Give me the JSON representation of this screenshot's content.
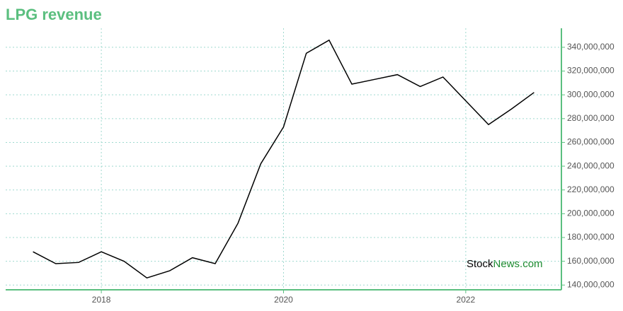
{
  "chart_data": {
    "type": "line",
    "title": "LPG revenue",
    "x": [
      2017.25,
      2017.5,
      2017.75,
      2018,
      2018.25,
      2018.5,
      2018.75,
      2019,
      2019.25,
      2019.5,
      2019.75,
      2020,
      2020.25,
      2020.5,
      2020.75,
      2021,
      2021.25,
      2021.5,
      2021.75,
      2022,
      2022.25,
      2022.5,
      2022.75
    ],
    "series": [
      {
        "color": "#000000",
        "values": [
          168000000,
          158000000,
          159000000,
          168000000,
          160000000,
          146000000,
          152000000,
          163000000,
          158000000,
          192000000,
          242000000,
          273000000,
          335000000,
          346000000,
          309000000,
          313000000,
          317000000,
          307000000,
          315000000,
          295000000,
          275000000,
          288000000,
          302000000
        ]
      }
    ],
    "xlim": [
      2016.95,
      2023.05
    ],
    "xticks": [
      2018,
      2020,
      2022
    ],
    "ylim": [
      136000000,
      356000000
    ],
    "yticks": [
      {
        "value": 140000000,
        "label": "140,000,000"
      },
      {
        "value": 160000000,
        "label": "160,000,000"
      },
      {
        "value": 180000000,
        "label": "180,000,000"
      },
      {
        "value": 200000000,
        "label": "200,000,000"
      },
      {
        "value": 220000000,
        "label": "220,000,000"
      },
      {
        "value": 240000000,
        "label": "240,000,000"
      },
      {
        "value": 260000000,
        "label": "260,000,000"
      },
      {
        "value": 280000000,
        "label": "280,000,000"
      },
      {
        "value": 300000000,
        "label": "300,000,000"
      },
      {
        "value": 320000000,
        "label": "320,000,000"
      },
      {
        "value": 340000000,
        "label": "340,000,000"
      }
    ],
    "grid": true,
    "axis_color": "#5bbf7f"
  },
  "watermark": {
    "brand": "Stock",
    "suffix": "News.com"
  }
}
